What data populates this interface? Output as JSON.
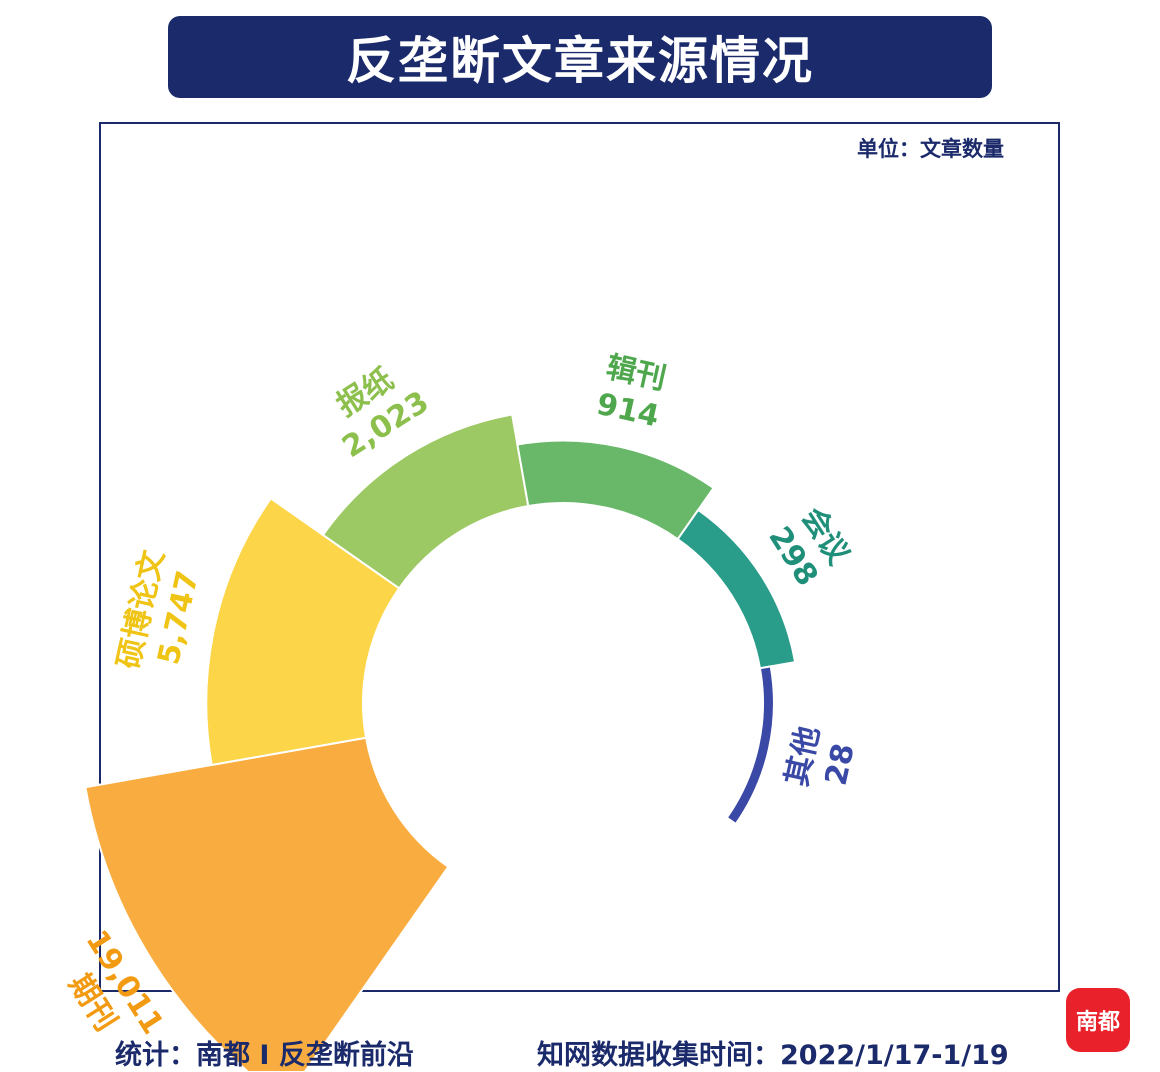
{
  "title": "反垄断文章来源情况",
  "unit": "单位：文章数量",
  "footer": {
    "source": "统计：南都 I 反垄断前沿",
    "date": "知网数据收集时间：2022/1/17-1/19"
  },
  "logo": {
    "text": "南都",
    "color": "#e8212b"
  },
  "colors": {
    "navy": "#1b2a6b"
  },
  "chart_data": {
    "type": "pie",
    "subtype": "nightingale-rose",
    "title": "反垄断文章来源情况",
    "unit": "单位：文章数量",
    "slices": [
      {
        "name": "期刊",
        "label": "19,011",
        "value": 19011,
        "color": "#f9ad40",
        "label_color": "#f29b12"
      },
      {
        "name": "硕博论文",
        "label": "5,747",
        "value": 5747,
        "color": "#fdd549",
        "label_color": "#f0c414"
      },
      {
        "name": "报纸",
        "label": "2,023",
        "value": 2023,
        "color": "#9cc963",
        "label_color": "#8dbf4c"
      },
      {
        "name": "辑刊",
        "label": "914",
        "value": 914,
        "color": "#69b869",
        "label_color": "#4fa74d"
      },
      {
        "name": "会议",
        "label": "298",
        "value": 298,
        "color": "#2a9d8a",
        "label_color": "#1f8f79"
      },
      {
        "name": "其他",
        "label": "28",
        "value": 28,
        "color": "#3a48a6",
        "label_color": "#3a48a6"
      }
    ]
  }
}
